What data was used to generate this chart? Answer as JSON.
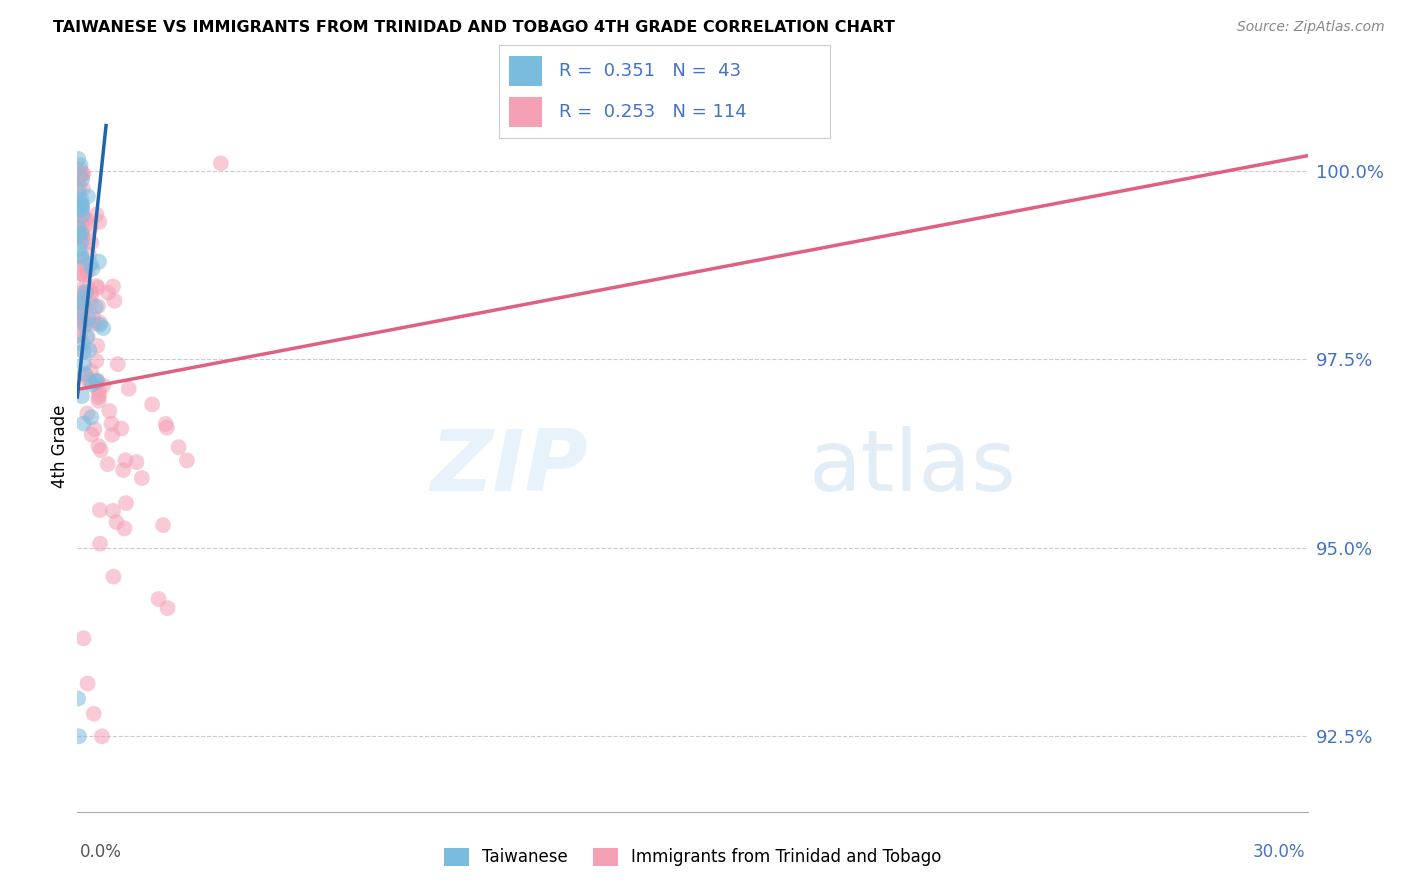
{
  "title": "TAIWANESE VS IMMIGRANTS FROM TRINIDAD AND TOBAGO 4TH GRADE CORRELATION CHART",
  "source": "Source: ZipAtlas.com",
  "ylabel": "4th Grade",
  "yticks": [
    92.5,
    95.0,
    97.5,
    100.0
  ],
  "ytick_labels": [
    "92.5%",
    "95.0%",
    "97.5%",
    "100.0%"
  ],
  "xmin": 0.0,
  "xmax": 30.0,
  "ymin": 91.5,
  "ymax": 101.2,
  "blue_color": "#7abcde",
  "pink_color": "#f4a0b5",
  "blue_line_color": "#2166ac",
  "pink_line_color": "#e06080",
  "bottom_legend_blue": "Taiwanese",
  "bottom_legend_pink": "Immigrants from Trinidad and Tobago"
}
